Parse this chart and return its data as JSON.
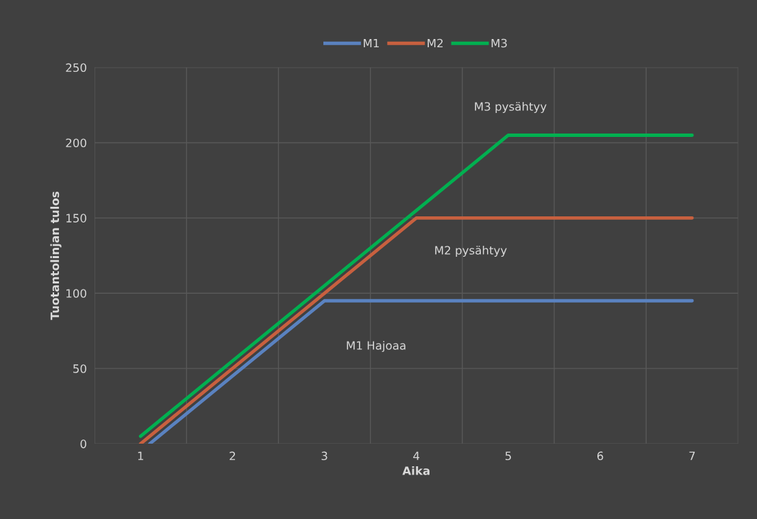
{
  "chart_data": {
    "type": "line",
    "xlabel": "Aika",
    "ylabel": "Tuotantolinjan tulos",
    "x": [
      1,
      2,
      3,
      4,
      5,
      6,
      7
    ],
    "series": [
      {
        "name": "M1",
        "color": "#5a82c0",
        "x": [
          1.1,
          2,
          3,
          4,
          5,
          6,
          7
        ],
        "values": [
          0,
          45,
          95,
          95,
          95,
          95,
          95
        ]
      },
      {
        "name": "M2",
        "color": "#c8603f",
        "values": [
          0,
          50,
          100,
          150,
          150,
          150,
          150
        ]
      },
      {
        "name": "M3",
        "color": "#00b050",
        "values": [
          5,
          55,
          105,
          155,
          205,
          205,
          205
        ]
      }
    ],
    "xlim": [
      0.5,
      7.5
    ],
    "xticks": [
      {
        "value": 0.5,
        "label": null
      },
      1,
      {
        "value": 1.5,
        "label": null
      },
      2,
      {
        "value": 2.5,
        "label": null
      },
      3,
      {
        "value": 3.5,
        "label": null
      },
      4,
      {
        "value": 4.5,
        "label": null
      },
      5,
      {
        "value": 5.5,
        "label": null
      },
      6,
      {
        "value": 6.5,
        "label": null
      },
      7,
      {
        "value": 7.5,
        "label": null
      }
    ],
    "ylim": [
      0,
      250
    ],
    "yticks": [
      0,
      50,
      100,
      150,
      200,
      250
    ],
    "grid": true,
    "legend": "top",
    "line_style": "solid",
    "marker": "none",
    "annotations": [
      "M3 pysähtyy",
      "M2 pysähtyy",
      "M1 Hajoaa"
    ]
  }
}
